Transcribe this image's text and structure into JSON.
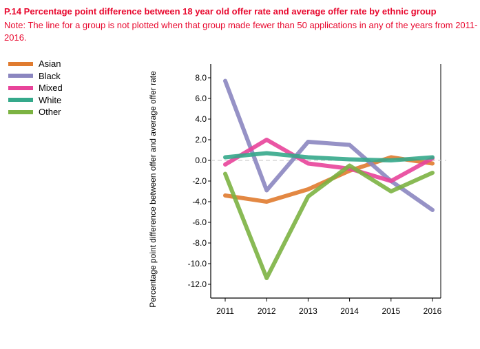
{
  "title": "P.14 Percentage point difference between 18 year old offer rate and average offer rate by ethnic group",
  "note": "Note: The line for a group is not plotted when that group made fewer than 50 applications in any of the years from 2011-2016.",
  "chart_data": {
    "type": "line",
    "title": "P.14 Percentage point difference between 18 year old offer rate and average offer rate by ethnic group",
    "xlabel": "",
    "ylabel": "Percentage point difference between offer and average offer rate",
    "categories": [
      "2011",
      "2012",
      "2013",
      "2014",
      "2015",
      "2016"
    ],
    "ylim": [
      -13.2,
      9.2
    ],
    "yticks": [
      8.0,
      6.0,
      4.0,
      2.0,
      0.0,
      -2.0,
      -4.0,
      -6.0,
      -8.0,
      -10.0,
      -12.0
    ],
    "ytick_labels": [
      "8.0",
      "6.0",
      "4.0",
      "2.0",
      "0.0",
      "-2.0",
      "-4.0",
      "-6.0",
      "-8.0",
      "-10.0",
      "-12.0"
    ],
    "zero_line": "dashed",
    "grid": false,
    "legend_position": "top-left",
    "series": [
      {
        "name": "Asian",
        "color": "#e07b2f",
        "values": [
          -3.4,
          -4.0,
          -2.8,
          -1.0,
          0.3,
          -0.3
        ]
      },
      {
        "name": "Black",
        "color": "#8b86c0",
        "values": [
          7.7,
          -2.9,
          1.8,
          1.5,
          -2.0,
          -4.8
        ]
      },
      {
        "name": "Mixed",
        "color": "#e8449a",
        "values": [
          -0.4,
          2.0,
          -0.3,
          -0.8,
          -2.0,
          0.2
        ]
      },
      {
        "name": "White",
        "color": "#35a98b",
        "values": [
          0.3,
          0.7,
          0.3,
          0.1,
          0.0,
          0.3
        ]
      },
      {
        "name": "Other",
        "color": "#7cb342",
        "values": [
          -1.3,
          -11.4,
          -3.5,
          -0.5,
          -3.0,
          -1.2
        ]
      }
    ]
  }
}
